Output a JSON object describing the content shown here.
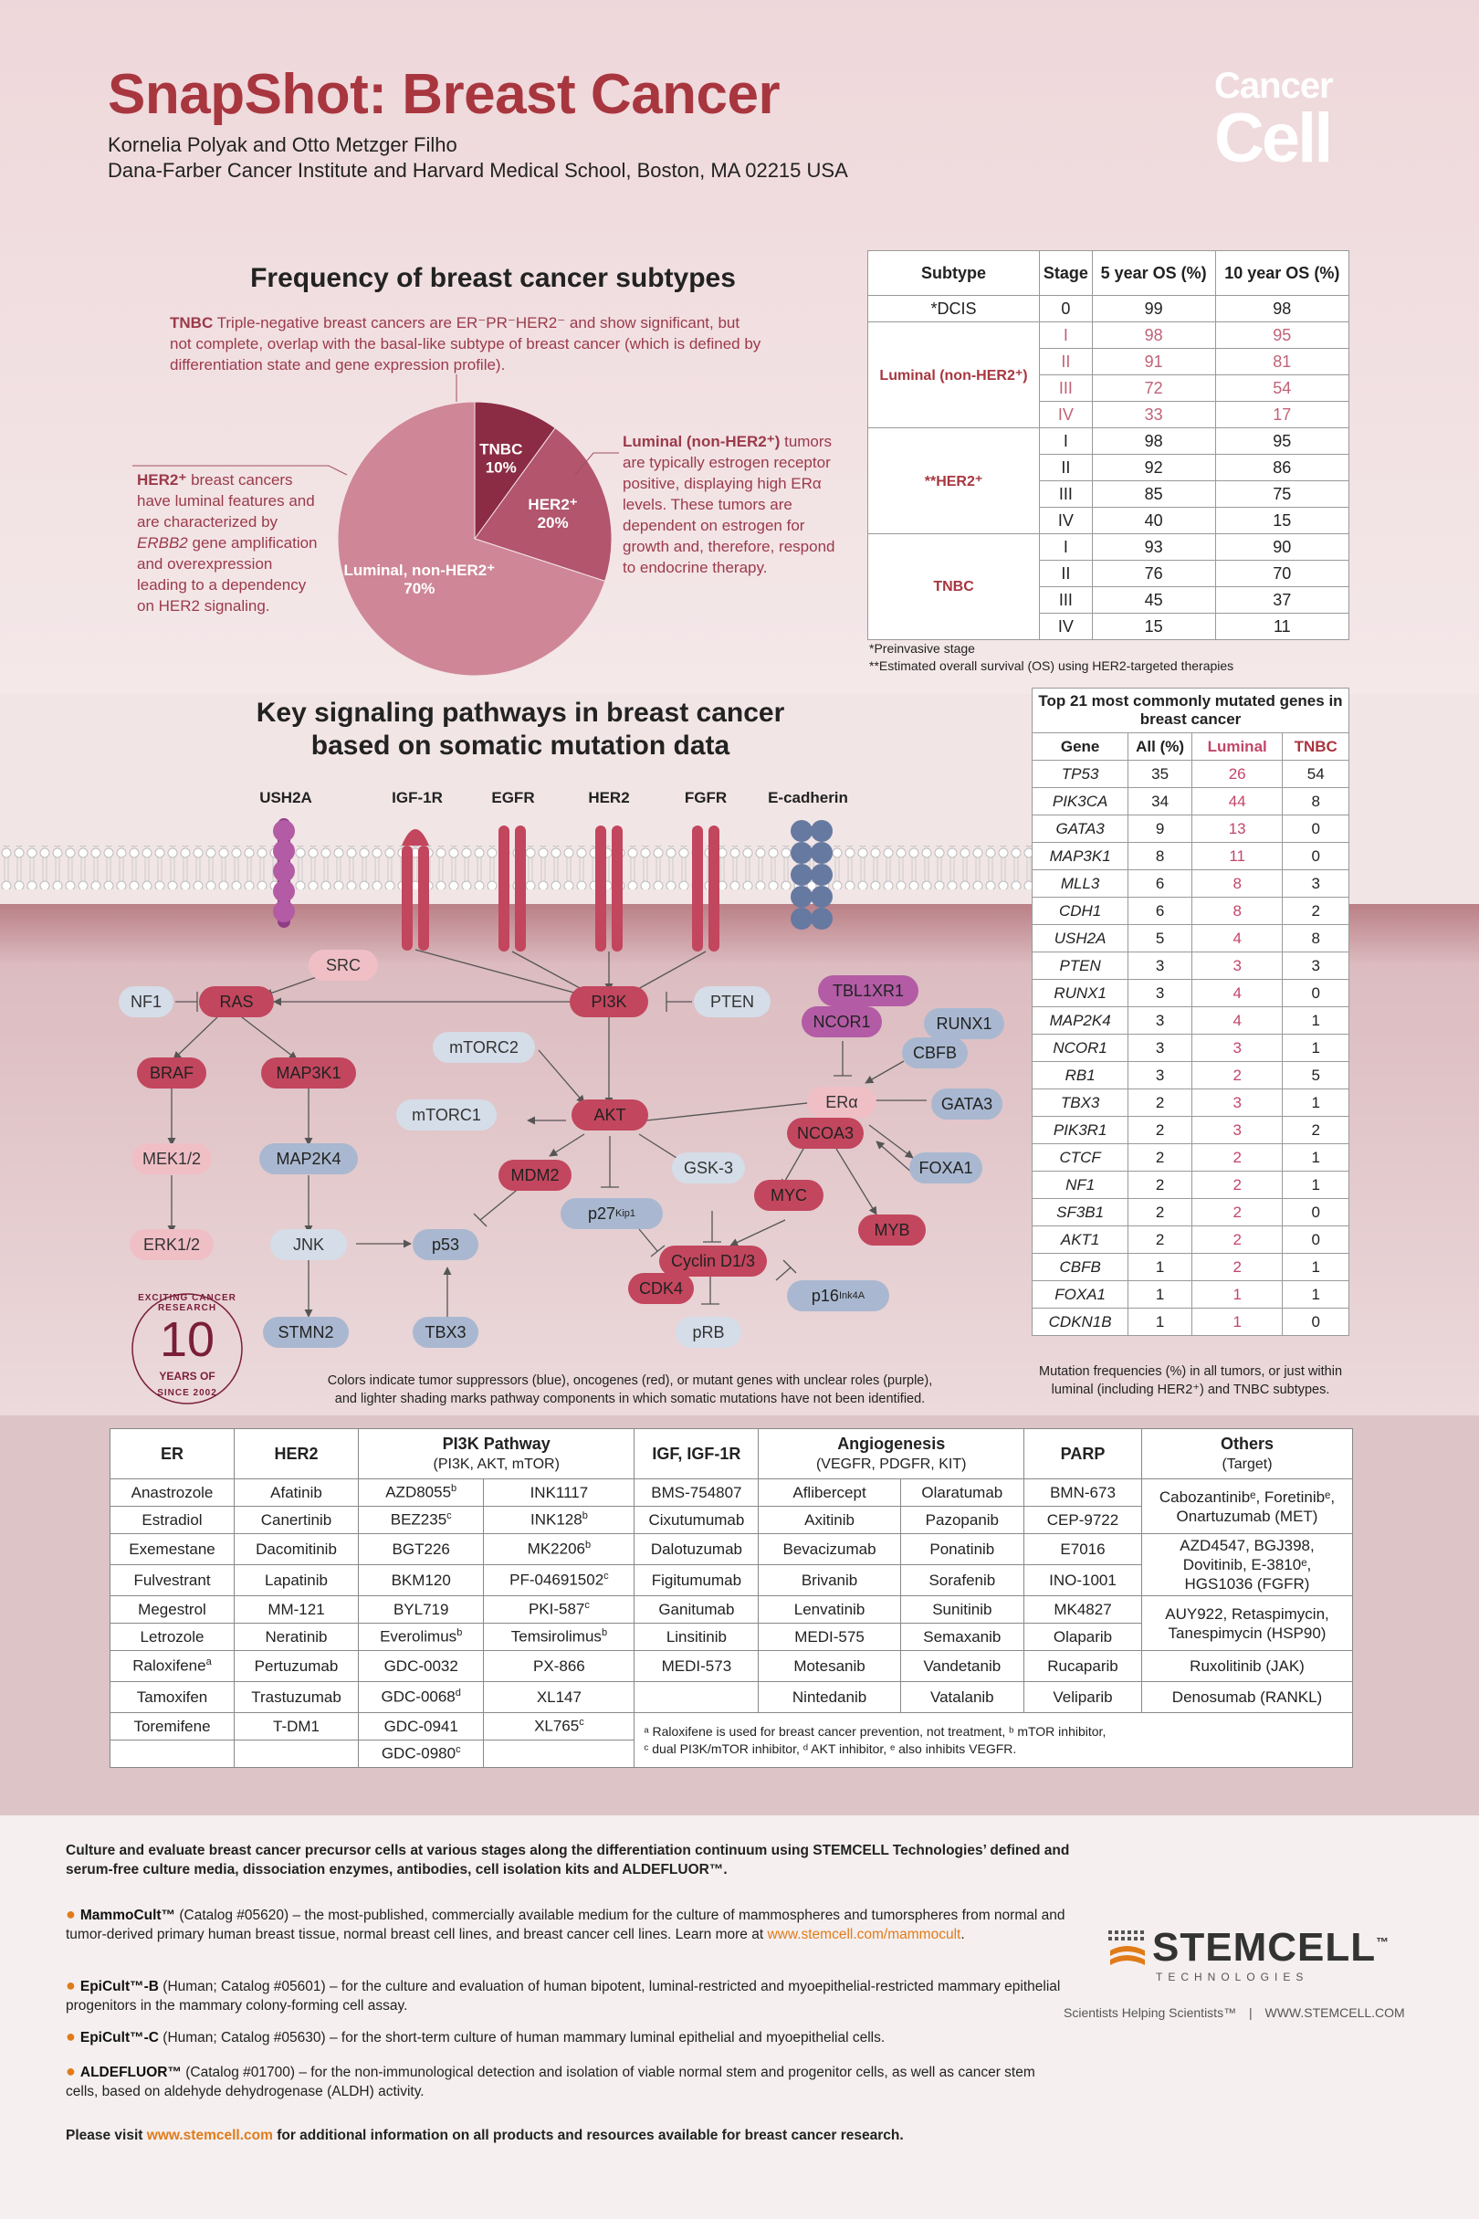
{
  "header": {
    "title": "SnapShot: Breast Cancer",
    "authors": "Kornelia Polyak and Otto Metzger Filho",
    "affiliation": "Dana-Farber Cancer Institute and Harvard Medical School, Boston, MA 02215 USA",
    "journal_line1": "Cancer",
    "journal_line2": "Cell"
  },
  "frequency": {
    "title": "Frequency of breast cancer subtypes",
    "tnbc_lead": "TNBC",
    "tnbc_text": "Triple-negative breast cancers are ER⁻PR⁻HER2⁻ and show significant, but not complete, overlap with the basal-like subtype of breast cancer (which is defined by differentiation state and gene expression profile).",
    "her2_lead": "HER2⁺",
    "her2_text_1": "breast cancers have luminal features and are characterized by",
    "her2_gene": "ERBB2",
    "her2_text_2": "gene amplification and overexpression leading to a dependency on HER2 signaling.",
    "luminal_lead": "Luminal (non-HER2⁺)",
    "luminal_text": "tumors are typically estrogen receptor positive, displaying high ERα levels. These tumors are dependent on estrogen for growth and, therefore, respond to endocrine therapy.",
    "pie": [
      {
        "name": "TNBC",
        "value": 10,
        "label": "10%",
        "color": "#8b2c44"
      },
      {
        "name": "HER2⁺",
        "value": 20,
        "label": "20%",
        "color": "#b2556d"
      },
      {
        "name": "Luminal, non-HER2⁺",
        "value": 70,
        "label": "70%",
        "color": "#cf8697"
      }
    ]
  },
  "subtype_table": {
    "headers": [
      "Subtype",
      "Stage",
      "5 year OS (%)",
      "10 year OS (%)"
    ],
    "groups": [
      {
        "subtype": "*DCIS",
        "rows": [
          [
            "0",
            "99",
            "98"
          ]
        ]
      },
      {
        "subtype": "Luminal (non-HER2⁺)",
        "rows": [
          [
            "I",
            "98",
            "95"
          ],
          [
            "II",
            "91",
            "81"
          ],
          [
            "III",
            "72",
            "54"
          ],
          [
            "IV",
            "33",
            "17"
          ]
        ]
      },
      {
        "subtype": "**HER2⁺",
        "rows": [
          [
            "I",
            "98",
            "95"
          ],
          [
            "II",
            "92",
            "86"
          ],
          [
            "III",
            "85",
            "75"
          ],
          [
            "IV",
            "40",
            "15"
          ]
        ]
      },
      {
        "subtype": "TNBC",
        "rows": [
          [
            "I",
            "93",
            "90"
          ],
          [
            "II",
            "76",
            "70"
          ],
          [
            "III",
            "45",
            "37"
          ],
          [
            "IV",
            "15",
            "11"
          ]
        ]
      }
    ],
    "note1": "*Preinvasive stage",
    "note2": "**Estimated overall survival (OS) using HER2-targeted therapies"
  },
  "pathways": {
    "title_line1": "Key signaling pathways in breast cancer",
    "title_line2": "based on somatic mutation data",
    "receptors": [
      "USH2A",
      "IGF-1R",
      "EGFR",
      "HER2",
      "FGFR",
      "E-cadherin"
    ],
    "nodes": {
      "src": "SRC",
      "nf1": "NF1",
      "ras": "RAS",
      "pi3k": "PI3K",
      "pten": "PTEN",
      "tbl1xr1": "TBL1XR1",
      "ncor1": "NCOR1",
      "runx1": "RUNX1",
      "cbfb": "CBFB",
      "braf": "BRAF",
      "map3k1": "MAP3K1",
      "mtorc2": "mTORC2",
      "mtorc1": "mTORC1",
      "akt": "AKT",
      "era": "ERα",
      "gata3": "GATA3",
      "ncoa3": "NCOA3",
      "mek": "MEK1/2",
      "map2k4": "MAP2K4",
      "mdm2": "MDM2",
      "gsk3": "GSK-3",
      "foxa1": "FOXA1",
      "myc": "MYC",
      "p27": "p27",
      "p27sup": "Kip1",
      "erk": "ERK1/2",
      "jnk": "JNK",
      "p53": "p53",
      "cyclin": "Cyclin D1/3",
      "myb": "MYB",
      "cdk4": "CDK4",
      "p16": "p16",
      "p16sup": "Ink4A",
      "stmn2": "STMN2",
      "tbx3": "TBX3",
      "prb": "pRB"
    },
    "legend_line1": "Colors indicate tumor suppressors (blue), oncogenes (red), or mutant genes with unclear roles (purple),",
    "legend_line2": "and lighter shading marks pathway components in which somatic mutations have not been identified.",
    "badge_top": "EXCITING CANCER RESEARCH",
    "badge_number": "10",
    "badge_years": "YEARS OF",
    "badge_bottom": "SINCE 2002"
  },
  "mutation_table": {
    "caption": "Top 21 most commonly mutated genes in breast cancer",
    "headers": [
      "Gene",
      "All (%)",
      "Luminal",
      "TNBC"
    ],
    "rows": [
      [
        "TP53",
        "35",
        "26",
        "54"
      ],
      [
        "PIK3CA",
        "34",
        "44",
        "8"
      ],
      [
        "GATA3",
        "9",
        "13",
        "0"
      ],
      [
        "MAP3K1",
        "8",
        "11",
        "0"
      ],
      [
        "MLL3",
        "6",
        "8",
        "3"
      ],
      [
        "CDH1",
        "6",
        "8",
        "2"
      ],
      [
        "USH2A",
        "5",
        "4",
        "8"
      ],
      [
        "PTEN",
        "3",
        "3",
        "3"
      ],
      [
        "RUNX1",
        "3",
        "4",
        "0"
      ],
      [
        "MAP2K4",
        "3",
        "4",
        "1"
      ],
      [
        "NCOR1",
        "3",
        "3",
        "1"
      ],
      [
        "RB1",
        "3",
        "2",
        "5"
      ],
      [
        "TBX3",
        "2",
        "3",
        "1"
      ],
      [
        "PIK3R1",
        "2",
        "3",
        "2"
      ],
      [
        "CTCF",
        "2",
        "2",
        "1"
      ],
      [
        "NF1",
        "2",
        "2",
        "1"
      ],
      [
        "SF3B1",
        "2",
        "2",
        "0"
      ],
      [
        "AKT1",
        "2",
        "2",
        "0"
      ],
      [
        "CBFB",
        "1",
        "2",
        "1"
      ],
      [
        "FOXA1",
        "1",
        "1",
        "1"
      ],
      [
        "CDKN1B",
        "1",
        "1",
        "0"
      ]
    ],
    "note": "Mutation frequencies (%) in all tumors, or just within luminal (including HER2⁺) and TNBC subtypes."
  },
  "drug_table": {
    "headers": {
      "er": "ER",
      "her2": "HER2",
      "pi3k": "PI3K Pathway",
      "pi3k_sub": "(PI3K, AKT, mTOR)",
      "igf": "IGF, IGF-1R",
      "angio": "Angiogenesis",
      "angio_sub": "(VEGFR, PDGFR, KIT)",
      "parp": "PARP",
      "others": "Others",
      "others_sub": "(Target)"
    },
    "er": [
      "Anastrozole",
      "Estradiol",
      "Exemestane",
      "Fulvestrant",
      "Megestrol",
      "Letrozole",
      "Raloxifene",
      "Tamoxifen",
      "Toremifene"
    ],
    "her2": [
      "Afatinib",
      "Canertinib",
      "Dacomitinib",
      "Lapatinib",
      "MM-121",
      "Neratinib",
      "Pertuzumab",
      "Trastuzumab",
      "T-DM1"
    ],
    "pi3k_a": [
      "AZD8055",
      "BEZ235",
      "BGT226",
      "BKM120",
      "BYL719",
      "Everolimus",
      "GDC-0032",
      "GDC-0068",
      "GDC-0941",
      "GDC-0980"
    ],
    "pi3k_a_sup": [
      "b",
      "c",
      "",
      "",
      "",
      "b",
      "",
      "d",
      "",
      "c"
    ],
    "pi3k_b": [
      "INK1117",
      "INK128",
      "MK2206",
      "PF-04691502",
      "PKI-587",
      "Temsirolimus",
      "PX-866",
      "XL147",
      "XL765",
      ""
    ],
    "pi3k_b_sup": [
      "",
      "b",
      "b",
      "c",
      "c",
      "b",
      "",
      "",
      "c",
      ""
    ],
    "igf": [
      "BMS-754807",
      "Cixutumumab",
      "Dalotuzumab",
      "Figitumumab",
      "Ganitumab",
      "Linsitinib",
      "MEDI-573",
      ""
    ],
    "angio_a": [
      "Aflibercept",
      "Axitinib",
      "Bevacizumab",
      "Brivanib",
      "Lenvatinib",
      "MEDI-575",
      "Motesanib",
      "Nintedanib"
    ],
    "angio_b": [
      "Olaratumab",
      "Pazopanib",
      "Ponatinib",
      "Sorafenib",
      "Sunitinib",
      "Semaxanib",
      "Vandetanib",
      "Vatalanib"
    ],
    "parp": [
      "BMN-673",
      "CEP-9722",
      "E7016",
      "INO-1001",
      "MK4827",
      "Olaparib",
      "Rucaparib",
      "Veliparib"
    ],
    "others": [
      "Cabozantinibᵉ, Foretinibᵉ, Onartuzumab (MET)",
      "AZD4547, BGJ398, Dovitinib, E-3810ᵉ, HGS1036 (FGFR)",
      "AUY922, Retaspimycin, Tanespimycin (HSP90)",
      "Ruxolitinib (JAK)",
      "Denosumab (RANKL)"
    ],
    "raloxifene_sup": "a",
    "footnote_line1": "ᵃ Raloxifene is used for breast cancer prevention, not treatment, ᵇ mTOR inhibitor,",
    "footnote_line2": "ᶜ dual PI3K/mTOR inhibitor, ᵈ AKT inhibitor, ᵉ also inhibits VEGFR."
  },
  "footer": {
    "intro": "Culture and evaluate breast cancer precursor cells at various stages along the differentiation continuum using STEMCELL Technologies’ defined and serum-free culture media, dissociation enzymes, antibodies, cell isolation kits and ALDEFLUOR™.",
    "items": [
      {
        "name": "MammoCult™",
        "text": "(Catalog #05620) – the most-published, commercially available medium for the culture of mammospheres and tumorspheres from normal and tumor-derived primary human breast tissue, normal breast cell lines, and breast cancer cell lines. Learn more at",
        "link": "www.stemcell.com/mammocult",
        "after": "."
      },
      {
        "name": "EpiCult™-B",
        "text": "(Human; Catalog #05601) – for the culture and evaluation of human bipotent, luminal-restricted and myoepithelial-restricted mammary epithelial progenitors in the mammary colony-forming cell assay.",
        "link": "",
        "after": ""
      },
      {
        "name": "EpiCult™-C",
        "text": "(Human; Catalog #05630) – for the short-term culture of human mammary luminal epithelial and myoepithelial cells.",
        "link": "",
        "after": ""
      },
      {
        "name": "ALDEFLUOR™",
        "text": "(Catalog #01700) – for the non-immunological detection and isolation of viable normal stem and progenitor cells, as well as cancer stem cells, based on aldehyde dehydrogenase (ALDH) activity.",
        "link": "",
        "after": ""
      }
    ],
    "visit_pre": "Please visit",
    "visit_link": "www.stemcell.com",
    "visit_post": "for additional information on all products and resources available for breast cancer research.",
    "logo_name": "STEMCELL",
    "logo_sub": "TECHNOLOGIES",
    "logo_tm": "™",
    "tagline": "Scientists Helping Scientists™",
    "tagline_sep": "|",
    "tagline_url": "WWW.STEMCELL.COM"
  }
}
